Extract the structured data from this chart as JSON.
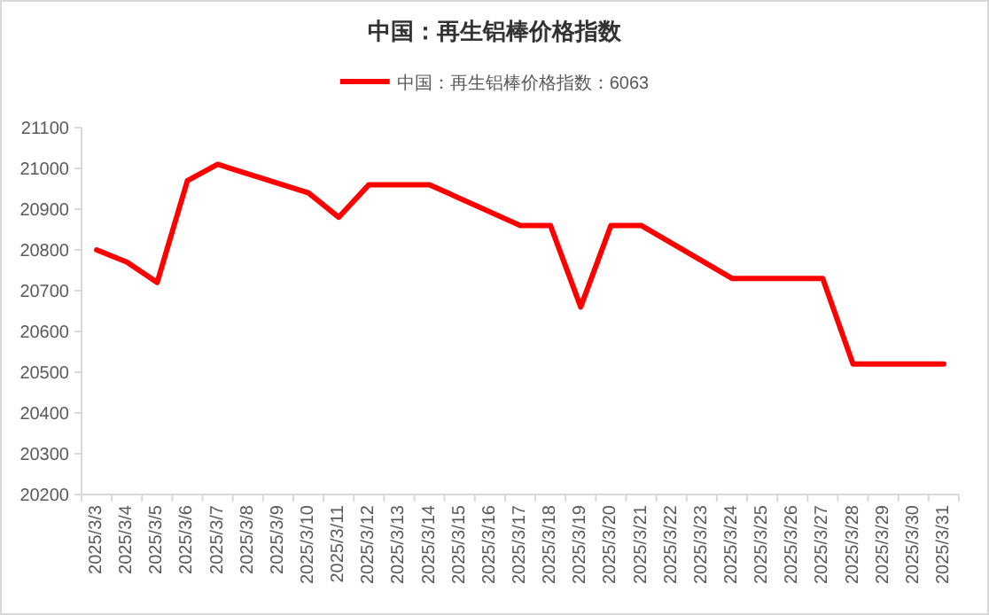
{
  "chart_data": {
    "type": "line",
    "title": "中国：再生铝棒价格指数",
    "categories": [
      "2025/3/3",
      "2025/3/4",
      "2025/3/5",
      "2025/3/6",
      "2025/3/7",
      "2025/3/8",
      "2025/3/9",
      "2025/3/10",
      "2025/3/11",
      "2025/3/12",
      "2025/3/13",
      "2025/3/14",
      "2025/3/15",
      "2025/3/16",
      "2025/3/17",
      "2025/3/18",
      "2025/3/19",
      "2025/3/20",
      "2025/3/21",
      "2025/3/22",
      "2025/3/23",
      "2025/3/24",
      "2025/3/25",
      "2025/3/26",
      "2025/3/27",
      "2025/3/28",
      "2025/3/29",
      "2025/3/30",
      "2025/3/31"
    ],
    "series": [
      {
        "name": "中国：再生铝棒价格指数：6063",
        "color": "#ff0000",
        "values": [
          20800,
          20770,
          20720,
          20970,
          21010,
          null,
          null,
          20940,
          20880,
          20960,
          20960,
          20960,
          null,
          null,
          20860,
          20860,
          20660,
          20860,
          20860,
          null,
          null,
          20730,
          20730,
          20730,
          20730,
          20520,
          null,
          null,
          20520
        ]
      }
    ],
    "ylim": [
      20200,
      21100
    ],
    "yticks": [
      20200,
      20300,
      20400,
      20500,
      20600,
      20700,
      20800,
      20900,
      21000,
      21100
    ],
    "grid": false,
    "legend": "top",
    "marker": "none",
    "line_style": "solid"
  }
}
